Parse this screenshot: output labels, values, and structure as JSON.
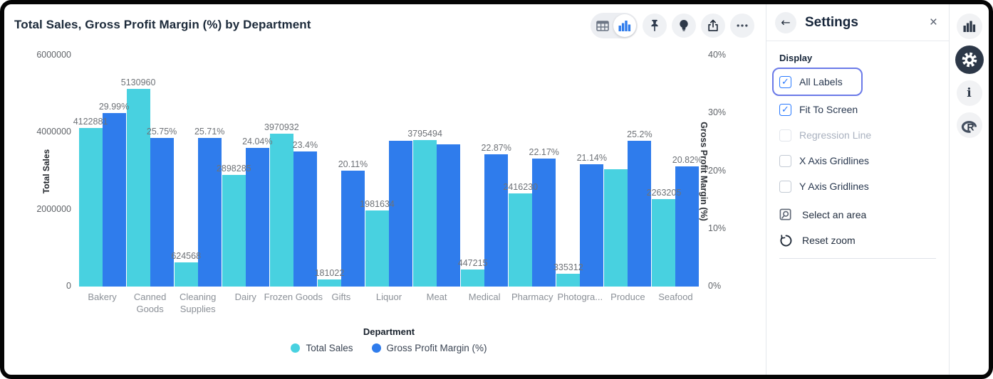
{
  "window_title": "Total Sales, Gross Profit Margin (%) by Department",
  "colors": {
    "sales_bar": "#48d1e0",
    "gpm_bar": "#2f7cec",
    "accent_blue": "#2979ff",
    "focus_ring": "#6b7ae8",
    "dark_icon": "#2d3848"
  },
  "toolbar": {
    "icons": [
      "table-view-icon",
      "chart-view-icon",
      "pin-icon",
      "lightbulb-icon",
      "share-icon",
      "more-icon"
    ],
    "active_view": "chart"
  },
  "chart_data": {
    "type": "bar",
    "title": "Total Sales, Gross Profit Margin (%) by Department",
    "xlabel": "Department",
    "categories": [
      "Bakery",
      "Canned Goods",
      "Cleaning Supplies",
      "Dairy",
      "Frozen Goods",
      "Gifts",
      "Liquor",
      "Meat",
      "Medical",
      "Pharmacy",
      "Photogra...",
      "Produce",
      "Seafood"
    ],
    "series": [
      {
        "name": "Total Sales",
        "axis": "left",
        "color": "#48d1e0",
        "values": [
          4122881,
          5130960,
          624568,
          2898285,
          3970932,
          181022,
          1981634,
          3795494,
          447215,
          2416230,
          335312,
          3050000,
          2263205
        ],
        "labels": [
          "4122881",
          "5130960",
          "624568",
          "2898285",
          "3970932",
          "181022",
          "1981634",
          "3795494",
          "447215",
          "2416230",
          "335312",
          "",
          "2263205"
        ]
      },
      {
        "name": "Gross Profit Margin (%)",
        "axis": "right",
        "color": "#2f7cec",
        "values": [
          29.99,
          25.75,
          25.71,
          24.04,
          23.4,
          20.11,
          25.2,
          24.6,
          22.87,
          22.17,
          21.14,
          25.2,
          20.82
        ],
        "labels": [
          "29.99%",
          "25.75%",
          "25.71%",
          "24.04%",
          "23.4%",
          "20.11%",
          "",
          "",
          "22.87%",
          "22.17%",
          "21.14%",
          "25.2%",
          "20.82%"
        ]
      }
    ],
    "left_axis": {
      "title": "Total Sales",
      "ticks": [
        "0",
        "2000000",
        "4000000",
        "6000000"
      ],
      "max": 6000000
    },
    "right_axis": {
      "title": "Gross Profit Margin (%)",
      "ticks": [
        "0%",
        "10%",
        "20%",
        "30%",
        "40%"
      ],
      "max": 40
    },
    "legend": [
      "Total Sales",
      "Gross Profit Margin (%)"
    ],
    "gridlines": false,
    "legend_position": "bottom"
  },
  "settings_panel": {
    "title": "Settings",
    "back_icon": "back-arrow-icon",
    "close_icon": "close-icon",
    "section": "Display",
    "checkboxes": [
      {
        "label": "All Labels",
        "checked": true,
        "disabled": false,
        "focused": true
      },
      {
        "label": "Fit To Screen",
        "checked": true,
        "disabled": false,
        "focused": false
      },
      {
        "label": "Regression Line",
        "checked": false,
        "disabled": true,
        "focused": false
      },
      {
        "label": "X Axis Gridlines",
        "checked": false,
        "disabled": false,
        "focused": false
      },
      {
        "label": "Y Axis Gridlines",
        "checked": false,
        "disabled": false,
        "focused": false
      }
    ],
    "actions": [
      {
        "label": "Select an area",
        "icon": "select-area-icon"
      },
      {
        "label": "Reset zoom",
        "icon": "reset-zoom-icon"
      }
    ]
  },
  "side_rail": {
    "icons": [
      "chart-icon",
      "gear-icon",
      "info-icon",
      "r-logo-icon"
    ],
    "active": "gear-icon"
  }
}
